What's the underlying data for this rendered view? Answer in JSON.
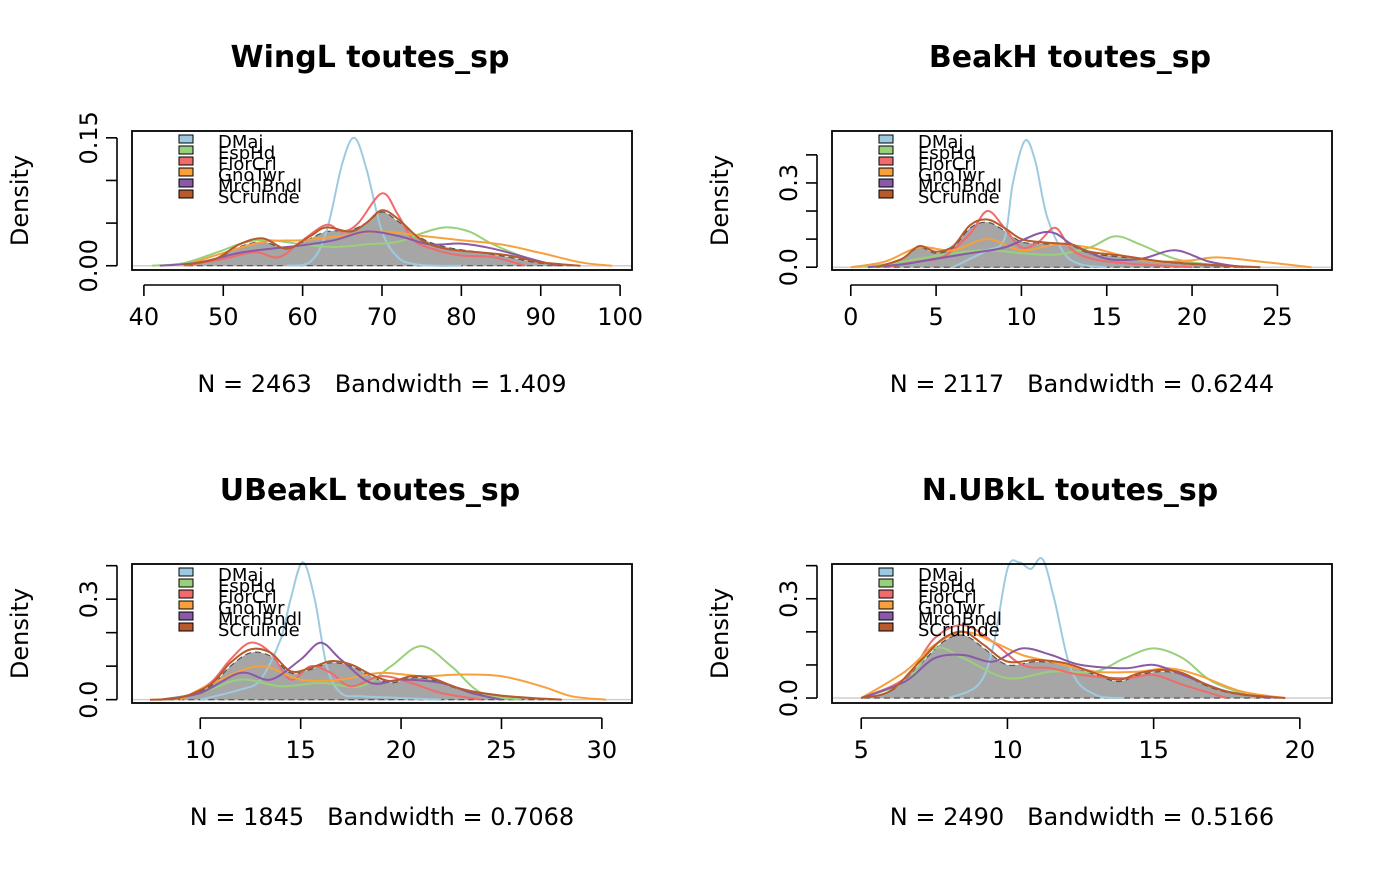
{
  "colors": {
    "DMaj": "#9ecae1",
    "EspHd": "#98d07b",
    "FlorCrl": "#f06b6b",
    "GnoTwr": "#f7a03c",
    "MrchBndl": "#8a5aa6",
    "SCrulnde": "#b75a2c",
    "fill": "#a6a6a6"
  },
  "chart_data": [
    {
      "type": "density",
      "title": "WingL toutes_sp",
      "xlabel": "N = 2463   Bandwidth = 1.409",
      "ylabel": "Density",
      "xlim": [
        38.5,
        101.5
      ],
      "ylim": [
        -0.005,
        0.158
      ],
      "xticks": [
        40,
        50,
        60,
        70,
        80,
        90,
        100
      ],
      "yticks": [
        0.0,
        0.05,
        0.1,
        0.15
      ],
      "ytick_labels": [
        "0.00",
        "",
        "",
        "0.15"
      ],
      "legend": [
        "DMaj",
        "EspHd",
        "FlorCrl",
        "GnoTwr",
        "MrchBndl",
        "SCrulnde"
      ],
      "fill_curve": {
        "x": [
          45,
          49,
          52,
          55,
          58,
          61,
          63,
          66,
          68,
          70,
          72,
          75,
          78,
          82,
          86,
          90,
          95
        ],
        "y": [
          0.001,
          0.008,
          0.022,
          0.028,
          0.02,
          0.032,
          0.04,
          0.042,
          0.05,
          0.063,
          0.052,
          0.032,
          0.022,
          0.016,
          0.01,
          0.003,
          0.0
        ]
      },
      "series": [
        {
          "name": "DMaj",
          "x": [
            58,
            61,
            63,
            65,
            66.5,
            68,
            70,
            72,
            74,
            77,
            80
          ],
          "y": [
            0.0,
            0.005,
            0.04,
            0.12,
            0.15,
            0.115,
            0.04,
            0.01,
            0.002,
            0.0,
            0.0
          ]
        },
        {
          "name": "EspHd",
          "x": [
            41,
            45,
            49,
            53,
            56,
            60,
            64,
            68,
            72,
            75,
            78,
            81,
            84,
            88,
            92
          ],
          "y": [
            0.0,
            0.003,
            0.015,
            0.028,
            0.03,
            0.025,
            0.022,
            0.025,
            0.028,
            0.038,
            0.045,
            0.04,
            0.025,
            0.01,
            0.0
          ]
        },
        {
          "name": "FlorCrl",
          "x": [
            45,
            50,
            54,
            57,
            60,
            63,
            65,
            67,
            70,
            72,
            74,
            77,
            80,
            84,
            88
          ],
          "y": [
            0.0,
            0.008,
            0.016,
            0.01,
            0.03,
            0.048,
            0.04,
            0.05,
            0.085,
            0.06,
            0.03,
            0.018,
            0.012,
            0.01,
            0.0
          ]
        },
        {
          "name": "GnoTwr",
          "x": [
            45,
            50,
            55,
            60,
            65,
            70,
            75,
            80,
            85,
            90,
            95,
            99
          ],
          "y": [
            0.0,
            0.015,
            0.028,
            0.03,
            0.035,
            0.04,
            0.035,
            0.03,
            0.025,
            0.015,
            0.004,
            0.0
          ]
        },
        {
          "name": "MrchBndl",
          "x": [
            42,
            47,
            52,
            56,
            60,
            64,
            68,
            72,
            76,
            80,
            84,
            88,
            92
          ],
          "y": [
            0.0,
            0.004,
            0.015,
            0.02,
            0.024,
            0.03,
            0.04,
            0.035,
            0.025,
            0.026,
            0.02,
            0.01,
            0.0
          ]
        },
        {
          "name": "SCrulnde",
          "x": [
            45,
            49,
            52,
            55,
            58,
            61,
            63,
            66,
            68,
            70,
            72,
            75,
            78,
            82,
            86,
            90,
            95
          ],
          "y": [
            0.001,
            0.008,
            0.025,
            0.032,
            0.02,
            0.035,
            0.045,
            0.04,
            0.05,
            0.065,
            0.055,
            0.03,
            0.02,
            0.016,
            0.012,
            0.004,
            0.0
          ]
        }
      ]
    },
    {
      "type": "density",
      "title": "BeakH toutes_sp",
      "xlabel": "N = 2117   Bandwidth = 0.6244",
      "ylabel": "Density",
      "xlim": [
        -1.1,
        28.2
      ],
      "ylim": [
        -0.01,
        0.485
      ],
      "xticks": [
        0,
        5,
        10,
        15,
        20,
        25
      ],
      "yticks": [
        0.0,
        0.1,
        0.2,
        0.3,
        0.4
      ],
      "ytick_labels": [
        "0.0",
        "",
        "",
        "0.3",
        ""
      ],
      "legend": [
        "DMaj",
        "EspHd",
        "FlorCrl",
        "GnoTwr",
        "MrchBndl",
        "SCrulnde"
      ],
      "fill_curve": {
        "x": [
          1.5,
          3,
          4,
          5,
          6,
          7,
          8,
          9,
          10,
          11,
          12,
          13,
          14,
          16,
          18,
          20,
          22,
          24
        ],
        "y": [
          0.0,
          0.03,
          0.07,
          0.05,
          0.07,
          0.14,
          0.16,
          0.13,
          0.09,
          0.085,
          0.08,
          0.075,
          0.05,
          0.035,
          0.02,
          0.01,
          0.004,
          0.0
        ]
      },
      "series": [
        {
          "name": "DMaj",
          "x": [
            6,
            7,
            8,
            9,
            9.5,
            10.2,
            10.8,
            11.5,
            12.5,
            13.5,
            15
          ],
          "y": [
            0.0,
            0.03,
            0.06,
            0.1,
            0.3,
            0.45,
            0.38,
            0.18,
            0.05,
            0.01,
            0.0
          ]
        },
        {
          "name": "EspHd",
          "x": [
            0,
            2,
            4,
            6,
            8,
            10,
            12,
            14,
            15.5,
            17,
            19,
            21,
            24
          ],
          "y": [
            0.0,
            0.01,
            0.03,
            0.05,
            0.06,
            0.05,
            0.045,
            0.07,
            0.11,
            0.08,
            0.03,
            0.01,
            0.0
          ]
        },
        {
          "name": "FlorCrl",
          "x": [
            2,
            4,
            5.5,
            7,
            8,
            9,
            10,
            11,
            12,
            13,
            14.5,
            17,
            20
          ],
          "y": [
            0.0,
            0.02,
            0.04,
            0.12,
            0.2,
            0.14,
            0.07,
            0.09,
            0.14,
            0.06,
            0.025,
            0.01,
            0.0
          ]
        },
        {
          "name": "GnoTwr",
          "x": [
            0,
            2,
            4,
            6,
            8,
            10,
            12,
            14,
            16,
            18,
            20,
            21.5,
            24,
            27
          ],
          "y": [
            0.0,
            0.02,
            0.07,
            0.06,
            0.1,
            0.06,
            0.08,
            0.07,
            0.04,
            0.02,
            0.025,
            0.035,
            0.02,
            0.0
          ]
        },
        {
          "name": "MrchBndl",
          "x": [
            1,
            3,
            5,
            7,
            9,
            11,
            12,
            13,
            15,
            17,
            19,
            21,
            23
          ],
          "y": [
            0.0,
            0.01,
            0.03,
            0.05,
            0.07,
            0.12,
            0.12,
            0.08,
            0.03,
            0.03,
            0.06,
            0.02,
            0.0
          ]
        },
        {
          "name": "SCrulnde",
          "x": [
            1.5,
            3,
            4,
            5,
            6,
            7,
            8,
            9,
            10,
            11,
            12,
            13,
            14,
            16,
            18,
            20,
            22,
            24
          ],
          "y": [
            0.0,
            0.03,
            0.075,
            0.055,
            0.075,
            0.15,
            0.17,
            0.14,
            0.1,
            0.09,
            0.085,
            0.08,
            0.055,
            0.04,
            0.022,
            0.012,
            0.005,
            0.0
          ]
        }
      ]
    },
    {
      "type": "density",
      "title": "UBeakL toutes_sp",
      "xlabel": "N = 1845   Bandwidth = 0.7068",
      "ylabel": "Density",
      "xlim": [
        6.6,
        31.5
      ],
      "ylim": [
        -0.01,
        0.405
      ],
      "xticks": [
        10,
        15,
        20,
        25,
        30
      ],
      "yticks": [
        0.0,
        0.1,
        0.2,
        0.3,
        0.4
      ],
      "ytick_labels": [
        "0.0",
        "",
        "",
        "0.3",
        ""
      ],
      "legend": [
        "DMaj",
        "EspHd",
        "FlorCrl",
        "GnoTwr",
        "MrchBndl",
        "SCrulnde"
      ],
      "fill_curve": {
        "x": [
          7.5,
          9,
          10.5,
          11.5,
          12.5,
          13.5,
          14.5,
          15.5,
          16.5,
          17.5,
          18.5,
          19.5,
          20.5,
          21.5,
          23,
          25,
          28
        ],
        "y": [
          0.0,
          0.005,
          0.04,
          0.1,
          0.14,
          0.13,
          0.08,
          0.09,
          0.11,
          0.1,
          0.07,
          0.05,
          0.065,
          0.06,
          0.03,
          0.01,
          0.0
        ]
      },
      "series": [
        {
          "name": "DMaj",
          "x": [
            10,
            12,
            13,
            14,
            14.5,
            15.1,
            15.7,
            16.3,
            17,
            18,
            20,
            22
          ],
          "y": [
            0.0,
            0.03,
            0.06,
            0.18,
            0.3,
            0.41,
            0.3,
            0.1,
            0.02,
            0.01,
            0.005,
            0.0
          ]
        },
        {
          "name": "EspHd",
          "x": [
            8,
            10,
            12,
            14,
            16,
            18,
            19.5,
            21,
            22.5,
            24,
            26
          ],
          "y": [
            0.0,
            0.02,
            0.06,
            0.04,
            0.05,
            0.04,
            0.1,
            0.16,
            0.1,
            0.02,
            0.0
          ]
        },
        {
          "name": "FlorCrl",
          "x": [
            9,
            10.5,
            11.5,
            12.5,
            13.5,
            14.5,
            15.5,
            16.5,
            17.5,
            19,
            20.5,
            22,
            24
          ],
          "y": [
            0.0,
            0.05,
            0.12,
            0.17,
            0.14,
            0.06,
            0.1,
            0.08,
            0.04,
            0.07,
            0.05,
            0.02,
            0.0
          ]
        },
        {
          "name": "GnoTwr",
          "x": [
            9,
            11,
            13,
            15,
            17,
            19,
            21,
            23,
            25,
            27,
            28.5,
            30.2
          ],
          "y": [
            0.0,
            0.06,
            0.1,
            0.06,
            0.06,
            0.08,
            0.07,
            0.075,
            0.07,
            0.04,
            0.01,
            0.0
          ]
        },
        {
          "name": "MrchBndl",
          "x": [
            8,
            10,
            12,
            13.5,
            15,
            16,
            17,
            18.5,
            20,
            22,
            23.5,
            25
          ],
          "y": [
            0.0,
            0.02,
            0.08,
            0.06,
            0.12,
            0.17,
            0.12,
            0.05,
            0.06,
            0.05,
            0.02,
            0.0
          ]
        },
        {
          "name": "SCrulnde",
          "x": [
            7.5,
            9,
            10.5,
            11.5,
            12.5,
            13.5,
            14.5,
            15.5,
            16.5,
            17.5,
            18.5,
            19.5,
            20.5,
            21.5,
            23,
            25,
            28
          ],
          "y": [
            0.0,
            0.006,
            0.045,
            0.11,
            0.15,
            0.14,
            0.085,
            0.095,
            0.115,
            0.105,
            0.075,
            0.055,
            0.07,
            0.065,
            0.032,
            0.012,
            0.0
          ]
        }
      ]
    },
    {
      "type": "density",
      "title": "N.UBkL toutes_sp",
      "xlabel": "N = 2490   Bandwidth = 0.5166",
      "ylabel": "Density",
      "xlim": [
        4.0,
        21.1
      ],
      "ylim": [
        -0.015,
        0.405
      ],
      "xticks": [
        5,
        10,
        15,
        20
      ],
      "yticks": [
        0.0,
        0.1,
        0.2,
        0.3,
        0.4
      ],
      "ytick_labels": [
        "0.0",
        "",
        "",
        "0.3",
        ""
      ],
      "legend": [
        "DMaj",
        "EspHd",
        "FlorCrl",
        "GnoTwr",
        "MrchBndl",
        "SCrulnde"
      ],
      "fill_curve": {
        "x": [
          5,
          6,
          7,
          7.8,
          8.5,
          9.2,
          10,
          11,
          12,
          13,
          13.8,
          14.5,
          15.3,
          16,
          17,
          18,
          19.5
        ],
        "y": [
          0.0,
          0.02,
          0.1,
          0.17,
          0.19,
          0.15,
          0.1,
          0.11,
          0.1,
          0.07,
          0.05,
          0.07,
          0.08,
          0.07,
          0.03,
          0.01,
          0.0
        ]
      },
      "series": [
        {
          "name": "DMaj",
          "x": [
            8,
            9,
            9.5,
            10,
            10.4,
            10.8,
            11.2,
            11.6,
            12.2,
            13,
            14
          ],
          "y": [
            0.0,
            0.04,
            0.15,
            0.39,
            0.41,
            0.39,
            0.42,
            0.3,
            0.08,
            0.01,
            0.0
          ]
        },
        {
          "name": "EspHd",
          "x": [
            5,
            6.5,
            7.5,
            8.5,
            10,
            11.5,
            13,
            14,
            15,
            16,
            17,
            18.5
          ],
          "y": [
            0.0,
            0.05,
            0.15,
            0.12,
            0.06,
            0.08,
            0.08,
            0.12,
            0.15,
            0.12,
            0.05,
            0.0
          ]
        },
        {
          "name": "FlorCrl",
          "x": [
            5,
            6.5,
            7.5,
            8.5,
            9.5,
            10.5,
            11.5,
            12.5,
            14,
            15,
            16,
            17.5
          ],
          "y": [
            0.0,
            0.06,
            0.18,
            0.22,
            0.17,
            0.1,
            0.09,
            0.07,
            0.06,
            0.07,
            0.04,
            0.0
          ]
        },
        {
          "name": "GnoTwr",
          "x": [
            5,
            6.5,
            7.5,
            8.5,
            9.5,
            10.5,
            11.5,
            13,
            14.5,
            15.5,
            16.5,
            18,
            19.5
          ],
          "y": [
            0.0,
            0.08,
            0.16,
            0.2,
            0.17,
            0.13,
            0.11,
            0.08,
            0.08,
            0.09,
            0.07,
            0.02,
            0.0
          ]
        },
        {
          "name": "MrchBndl",
          "x": [
            5,
            6.5,
            7.5,
            8.5,
            9.5,
            10.5,
            11.5,
            12.5,
            14,
            15,
            16,
            17.5,
            19
          ],
          "y": [
            0.0,
            0.05,
            0.12,
            0.13,
            0.11,
            0.15,
            0.13,
            0.1,
            0.09,
            0.1,
            0.07,
            0.02,
            0.0
          ]
        },
        {
          "name": "SCrulnde",
          "x": [
            5,
            6,
            7,
            7.8,
            8.5,
            9.2,
            10,
            11,
            12,
            13,
            13.8,
            14.5,
            15.3,
            16,
            17,
            18,
            19.5
          ],
          "y": [
            0.0,
            0.022,
            0.11,
            0.18,
            0.2,
            0.16,
            0.11,
            0.115,
            0.105,
            0.075,
            0.055,
            0.075,
            0.085,
            0.075,
            0.033,
            0.011,
            0.0
          ]
        }
      ]
    }
  ]
}
